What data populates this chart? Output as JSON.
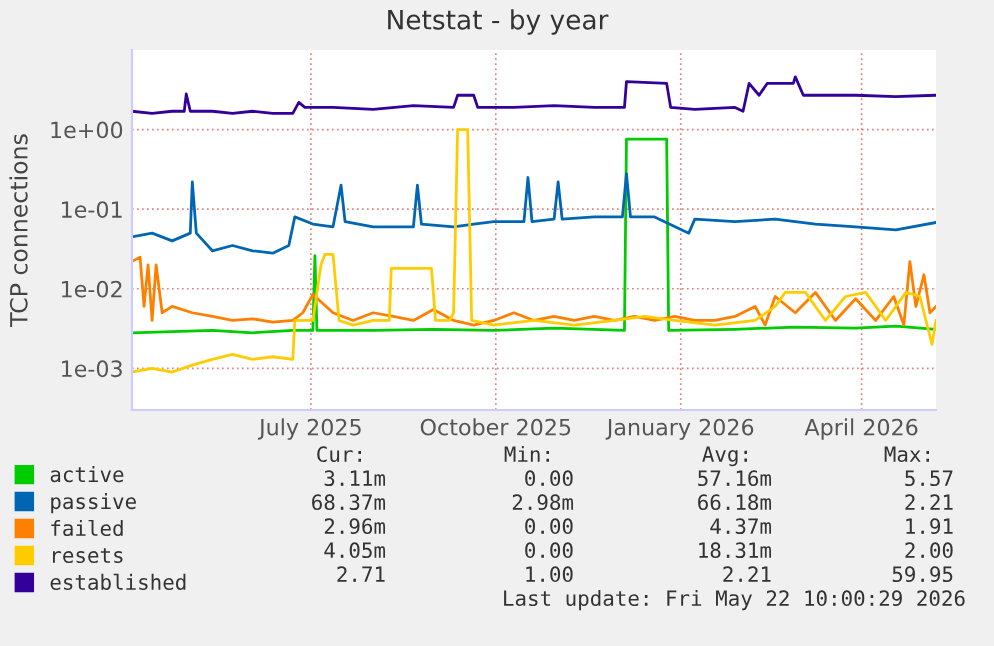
{
  "chart_data": {
    "type": "line",
    "title": "Netstat - by year",
    "ylabel": "TCP connections",
    "log": "y",
    "grid": true,
    "legend": "bottom",
    "marker": "none",
    "line_style": "solid",
    "xlim": [
      "2025-04-17",
      "2026-05-22"
    ],
    "xticks": [
      {
        "value": "2025-07-15",
        "label": "July 2025"
      },
      {
        "value": "2025-10-15",
        "label": "October 2025"
      },
      {
        "value": "2026-01-15",
        "label": "January 2026"
      },
      {
        "value": "2026-04-15",
        "label": "April 2026"
      }
    ],
    "ylim": [
      0.0003,
      10
    ],
    "yticks": [
      {
        "value": 0.001,
        "label": "1e-03"
      },
      {
        "value": 0.01,
        "label": "1e-02"
      },
      {
        "value": 0.1,
        "label": "1e-01"
      },
      {
        "value": 1,
        "label": "1e+00"
      }
    ],
    "series": [
      {
        "name": "active",
        "color": "#00cc00",
        "x": [
          "2025-04-17",
          "2025-05-07",
          "2025-05-27",
          "2025-06-16",
          "2025-07-06",
          "2025-07-16",
          "2025-07-17",
          "2025-07-18",
          "2025-08-15",
          "2025-09-14",
          "2025-10-14",
          "2025-11-13",
          "2025-12-18",
          "2025-12-19",
          "2026-01-08",
          "2026-01-09",
          "2026-02-11",
          "2026-03-13",
          "2026-04-12",
          "2026-05-02",
          "2026-05-22"
        ],
        "values": [
          0.0028,
          0.0029,
          0.003,
          0.0028,
          0.003,
          0.003,
          0.026,
          0.003,
          0.003,
          0.0031,
          0.003,
          0.0032,
          0.003,
          0.76,
          0.76,
          0.003,
          0.0031,
          0.0033,
          0.0032,
          0.0034,
          0.0031
        ]
      },
      {
        "name": "passive",
        "color": "#0066b3",
        "x": [
          "2025-04-17",
          "2025-04-27",
          "2025-05-07",
          "2025-05-16",
          "2025-05-17",
          "2025-05-19",
          "2025-05-27",
          "2025-06-06",
          "2025-06-16",
          "2025-06-26",
          "2025-07-04",
          "2025-07-07",
          "2025-07-16",
          "2025-07-26",
          "2025-07-30",
          "2025-08-01",
          "2025-08-15",
          "2025-09-04",
          "2025-09-06",
          "2025-09-08",
          "2025-09-24",
          "2025-10-04",
          "2025-10-14",
          "2025-10-29",
          "2025-10-31",
          "2025-11-02",
          "2025-11-13",
          "2025-11-15",
          "2025-11-17",
          "2025-12-03",
          "2025-12-17",
          "2025-12-19",
          "2025-12-21",
          "2026-01-02",
          "2026-01-19",
          "2026-01-22",
          "2026-02-11",
          "2026-03-03",
          "2026-03-23",
          "2026-04-12",
          "2026-05-02",
          "2026-05-22"
        ],
        "values": [
          0.045,
          0.05,
          0.04,
          0.05,
          0.22,
          0.05,
          0.03,
          0.035,
          0.03,
          0.028,
          0.035,
          0.08,
          0.065,
          0.06,
          0.2,
          0.07,
          0.06,
          0.06,
          0.2,
          0.065,
          0.06,
          0.065,
          0.07,
          0.07,
          0.25,
          0.07,
          0.075,
          0.22,
          0.075,
          0.08,
          0.08,
          0.28,
          0.08,
          0.08,
          0.05,
          0.075,
          0.07,
          0.075,
          0.065,
          0.06,
          0.055,
          0.068
        ]
      },
      {
        "name": "failed",
        "color": "#ff8000",
        "x": [
          "2025-04-17",
          "2025-04-21",
          "2025-04-23",
          "2025-04-25",
          "2025-04-27",
          "2025-04-29",
          "2025-05-02",
          "2025-05-07",
          "2025-05-17",
          "2025-05-27",
          "2025-06-06",
          "2025-06-16",
          "2025-06-26",
          "2025-07-06",
          "2025-07-11",
          "2025-07-16",
          "2025-07-26",
          "2025-08-05",
          "2025-08-15",
          "2025-08-25",
          "2025-09-04",
          "2025-09-14",
          "2025-09-24",
          "2025-10-04",
          "2025-10-14",
          "2025-10-24",
          "2025-11-03",
          "2025-11-13",
          "2025-11-23",
          "2025-12-03",
          "2025-12-13",
          "2025-12-23",
          "2026-01-02",
          "2026-01-12",
          "2026-01-22",
          "2026-02-01",
          "2026-02-11",
          "2026-02-21",
          "2026-02-26",
          "2026-03-03",
          "2026-03-13",
          "2026-03-23",
          "2026-04-02",
          "2026-04-12",
          "2026-04-22",
          "2026-05-01",
          "2026-05-06",
          "2026-05-09",
          "2026-05-12",
          "2026-05-16",
          "2026-05-19",
          "2026-05-22"
        ],
        "values": [
          0.022,
          0.025,
          0.006,
          0.02,
          0.004,
          0.02,
          0.005,
          0.006,
          0.005,
          0.0045,
          0.004,
          0.0042,
          0.0038,
          0.004,
          0.005,
          0.0085,
          0.005,
          0.004,
          0.005,
          0.0045,
          0.004,
          0.0055,
          0.004,
          0.0035,
          0.004,
          0.005,
          0.004,
          0.0045,
          0.004,
          0.0045,
          0.004,
          0.0045,
          0.004,
          0.0045,
          0.004,
          0.004,
          0.0045,
          0.006,
          0.0035,
          0.008,
          0.005,
          0.009,
          0.004,
          0.0075,
          0.004,
          0.008,
          0.0035,
          0.022,
          0.006,
          0.015,
          0.005,
          0.006
        ]
      },
      {
        "name": "resets",
        "color": "#ffcc00",
        "x": [
          "2025-04-17",
          "2025-04-27",
          "2025-05-07",
          "2025-05-17",
          "2025-05-27",
          "2025-06-06",
          "2025-06-16",
          "2025-06-26",
          "2025-07-06",
          "2025-07-07",
          "2025-07-16",
          "2025-07-20",
          "2025-07-22",
          "2025-07-26",
          "2025-07-29",
          "2025-08-05",
          "2025-08-15",
          "2025-08-23",
          "2025-08-24",
          "2025-09-13",
          "2025-09-15",
          "2025-09-22",
          "2025-09-24",
          "2025-09-26",
          "2025-10-01",
          "2025-10-03",
          "2025-10-14",
          "2025-11-03",
          "2025-11-23",
          "2025-12-13",
          "2025-12-28",
          "2026-01-12",
          "2026-02-01",
          "2026-02-21",
          "2026-03-03",
          "2026-03-08",
          "2026-03-18",
          "2026-03-28",
          "2026-04-07",
          "2026-04-17",
          "2026-04-27",
          "2026-05-07",
          "2026-05-14",
          "2026-05-20",
          "2026-05-22"
        ],
        "values": [
          0.0009,
          0.001,
          0.0009,
          0.0011,
          0.0013,
          0.0015,
          0.0013,
          0.0014,
          0.0013,
          0.004,
          0.004,
          0.02,
          0.027,
          0.027,
          0.004,
          0.0035,
          0.004,
          0.004,
          0.018,
          0.018,
          0.004,
          0.004,
          0.005,
          1.0,
          1.0,
          0.004,
          0.0035,
          0.004,
          0.0035,
          0.004,
          0.0045,
          0.004,
          0.0035,
          0.004,
          0.006,
          0.009,
          0.009,
          0.004,
          0.008,
          0.009,
          0.004,
          0.009,
          0.008,
          0.002,
          0.004
        ]
      },
      {
        "name": "established",
        "color": "#330099",
        "x": [
          "2025-04-17",
          "2025-04-27",
          "2025-05-07",
          "2025-05-13",
          "2025-05-14",
          "2025-05-16",
          "2025-05-27",
          "2025-06-06",
          "2025-06-16",
          "2025-06-26",
          "2025-07-06",
          "2025-07-09",
          "2025-07-12",
          "2025-07-26",
          "2025-08-15",
          "2025-09-04",
          "2025-09-24",
          "2025-09-26",
          "2025-10-04",
          "2025-10-06",
          "2025-10-24",
          "2025-11-13",
          "2025-12-03",
          "2025-12-18",
          "2025-12-19",
          "2026-01-08",
          "2026-01-10",
          "2026-01-22",
          "2026-02-11",
          "2026-02-15",
          "2026-02-18",
          "2026-02-23",
          "2026-02-27",
          "2026-03-12",
          "2026-03-13",
          "2026-03-17",
          "2026-04-12",
          "2026-05-02",
          "2026-05-22"
        ],
        "values": [
          1.7,
          1.6,
          1.7,
          1.7,
          2.8,
          1.7,
          1.7,
          1.6,
          1.7,
          1.6,
          1.6,
          2.2,
          1.9,
          1.9,
          1.8,
          2.0,
          1.9,
          2.7,
          2.7,
          1.9,
          1.9,
          2.0,
          1.9,
          1.9,
          4.0,
          3.8,
          1.9,
          1.8,
          1.9,
          1.7,
          3.8,
          2.7,
          3.8,
          3.8,
          4.6,
          2.7,
          2.7,
          2.6,
          2.7
        ]
      }
    ],
    "annotations": [
      "Cur:",
      "Min:",
      "Avg:",
      "Max:",
      "3.11m",
      "0.00",
      "57.16m",
      "5.57",
      "68.37m",
      "2.98m",
      "66.18m",
      "2.21",
      "2.96m",
      "0.00",
      "4.37m",
      "1.91",
      "4.05m",
      "0.00",
      "18.31m",
      "2.00",
      "2.71",
      "1.00",
      "2.21",
      "59.95",
      "Last update: Fri May 22 10:00:29 2026"
    ]
  }
}
